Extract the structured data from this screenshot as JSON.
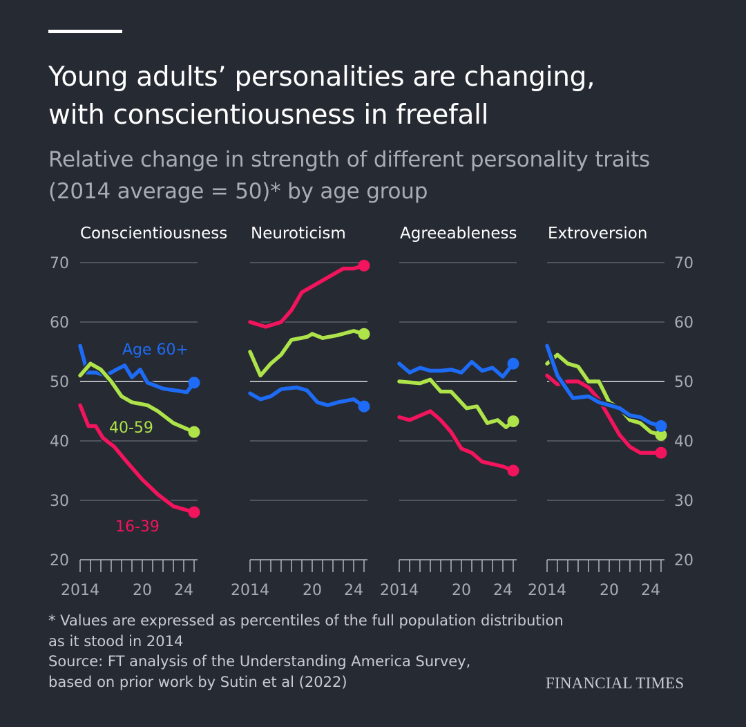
{
  "title": [
    "Young adults’ personalities are changing,",
    "with conscientiousness in freefall"
  ],
  "subtitle": [
    "Relative change in strength of different personality traits",
    "(2014 average = 50)* by age group"
  ],
  "footnote": [
    "* Values are expressed as percentiles of the full population distribution",
    "as it stood in 2014",
    "Source: FT analysis of the Understanding America Survey,",
    "based on prior work by Sutin et al (2022)"
  ],
  "brand": "FINANCIAL TIMES",
  "colors": {
    "background": "#262a33",
    "age_16_39": "#f2145c",
    "age_40_59": "#aee34a",
    "age_60_plus": "#1e6cf5",
    "grid": "#6b6e75",
    "baseline": "#b4b6bb"
  },
  "chart_data": {
    "type": "line",
    "ylim": [
      20,
      70
    ],
    "yticks": [
      "70",
      "60",
      "50",
      "40",
      "30",
      "20"
    ],
    "xlim": [
      2014,
      2025
    ],
    "xtick_labels": [
      "2014",
      "20",
      "24"
    ],
    "series_labels": {
      "age_60_plus": "Age 60+",
      "age_40_59": "40-59",
      "age_16_39": "16-39"
    },
    "panels": [
      {
        "title": "Conscientiousness",
        "series": [
          {
            "key": "age_60_plus",
            "points": [
              [
                2014,
                56
              ],
              [
                2014.7,
                51.5
              ],
              [
                2015.5,
                51.5
              ],
              [
                2016.5,
                51
              ],
              [
                2017.5,
                52
              ],
              [
                2018.3,
                52.7
              ],
              [
                2019,
                50.7
              ],
              [
                2019.8,
                52
              ],
              [
                2020.5,
                49.8
              ],
              [
                2022,
                48.8
              ],
              [
                2024.3,
                48.2
              ],
              [
                2025,
                49.8
              ]
            ]
          },
          {
            "key": "age_40_59",
            "points": [
              [
                2014,
                51
              ],
              [
                2015,
                53
              ],
              [
                2016,
                52
              ],
              [
                2017,
                50
              ],
              [
                2018,
                47.5
              ],
              [
                2019,
                46.5
              ],
              [
                2020.5,
                46
              ],
              [
                2021.5,
                45
              ],
              [
                2023,
                43
              ],
              [
                2025,
                41.5
              ]
            ]
          },
          {
            "key": "age_16_39",
            "points": [
              [
                2014,
                46
              ],
              [
                2014.8,
                42.5
              ],
              [
                2015.5,
                42.5
              ],
              [
                2016.2,
                40.5
              ],
              [
                2017.3,
                39
              ],
              [
                2018.5,
                36.5
              ],
              [
                2020,
                33.5
              ],
              [
                2021.5,
                31
              ],
              [
                2023,
                29
              ],
              [
                2025,
                28
              ]
            ]
          }
        ]
      },
      {
        "title": "Neuroticism",
        "series": [
          {
            "key": "age_16_39",
            "points": [
              [
                2014,
                60
              ],
              [
                2015.5,
                59.2
              ],
              [
                2017,
                60
              ],
              [
                2018,
                62
              ],
              [
                2019,
                65
              ],
              [
                2020.5,
                66.5
              ],
              [
                2021.5,
                67.5
              ],
              [
                2023,
                69
              ],
              [
                2024,
                69
              ],
              [
                2025,
                69.5
              ]
            ]
          },
          {
            "key": "age_40_59",
            "points": [
              [
                2014,
                55
              ],
              [
                2015,
                51
              ],
              [
                2016,
                53
              ],
              [
                2017,
                54.5
              ],
              [
                2018,
                57
              ],
              [
                2019.5,
                57.5
              ],
              [
                2020,
                58
              ],
              [
                2021,
                57.3
              ],
              [
                2022.5,
                57.8
              ],
              [
                2024,
                58.5
              ],
              [
                2025,
                58
              ]
            ]
          },
          {
            "key": "age_60_plus",
            "points": [
              [
                2014,
                48
              ],
              [
                2015,
                47
              ],
              [
                2016,
                47.5
              ],
              [
                2017,
                48.7
              ],
              [
                2018.5,
                49
              ],
              [
                2019.5,
                48.5
              ],
              [
                2020.5,
                46.5
              ],
              [
                2021.5,
                46
              ],
              [
                2022.5,
                46.5
              ],
              [
                2024,
                47
              ],
              [
                2025,
                45.8
              ]
            ]
          }
        ]
      },
      {
        "title": "Agreeableness",
        "series": [
          {
            "key": "age_60_plus",
            "points": [
              [
                2014,
                53
              ],
              [
                2015,
                51.5
              ],
              [
                2016,
                52.3
              ],
              [
                2017,
                51.8
              ],
              [
                2018,
                51.8
              ],
              [
                2019,
                52
              ],
              [
                2020,
                51.5
              ],
              [
                2021,
                53.3
              ],
              [
                2022,
                51.8
              ],
              [
                2023,
                52.3
              ],
              [
                2024,
                50.8
              ],
              [
                2025,
                53
              ]
            ]
          },
          {
            "key": "age_40_59",
            "points": [
              [
                2014,
                50
              ],
              [
                2016,
                49.7
              ],
              [
                2017,
                50.3
              ],
              [
                2018,
                48.3
              ],
              [
                2019,
                48.3
              ],
              [
                2020.5,
                45.5
              ],
              [
                2021.5,
                45.8
              ],
              [
                2022.5,
                43
              ],
              [
                2023.5,
                43.5
              ],
              [
                2024.3,
                42.3
              ],
              [
                2025,
                43.3
              ]
            ]
          },
          {
            "key": "age_16_39",
            "points": [
              [
                2014,
                44
              ],
              [
                2015,
                43.5
              ],
              [
                2017,
                45
              ],
              [
                2018,
                43.5
              ],
              [
                2019,
                41.5
              ],
              [
                2020,
                38.7
              ],
              [
                2021,
                38
              ],
              [
                2022,
                36.5
              ],
              [
                2024,
                35.7
              ],
              [
                2025,
                35
              ]
            ]
          }
        ]
      },
      {
        "title": "Extroversion",
        "series": [
          {
            "key": "age_16_39",
            "points": [
              [
                2014,
                51
              ],
              [
                2015,
                49.5
              ],
              [
                2016,
                50
              ],
              [
                2017,
                50
              ],
              [
                2018,
                49
              ],
              [
                2019,
                47
              ],
              [
                2020,
                44
              ],
              [
                2021,
                41
              ],
              [
                2022,
                39
              ],
              [
                2023,
                38
              ],
              [
                2025,
                38
              ]
            ]
          },
          {
            "key": "age_40_59",
            "points": [
              [
                2014,
                53
              ],
              [
                2015,
                54.5
              ],
              [
                2016,
                53
              ],
              [
                2017,
                52.5
              ],
              [
                2018,
                50
              ],
              [
                2019,
                50
              ],
              [
                2020,
                46.5
              ],
              [
                2021,
                45.5
              ],
              [
                2022,
                43.5
              ],
              [
                2023,
                43
              ],
              [
                2024,
                41.5
              ],
              [
                2025,
                41
              ]
            ]
          },
          {
            "key": "age_60_plus",
            "points": [
              [
                2014,
                56
              ],
              [
                2015,
                51
              ],
              [
                2016.5,
                47.2
              ],
              [
                2018,
                47.5
              ],
              [
                2019,
                46.5
              ],
              [
                2020,
                46
              ],
              [
                2021,
                45.5
              ],
              [
                2022,
                44.3
              ],
              [
                2023,
                44
              ],
              [
                2024,
                43
              ],
              [
                2025,
                42.5
              ]
            ]
          }
        ]
      }
    ]
  }
}
